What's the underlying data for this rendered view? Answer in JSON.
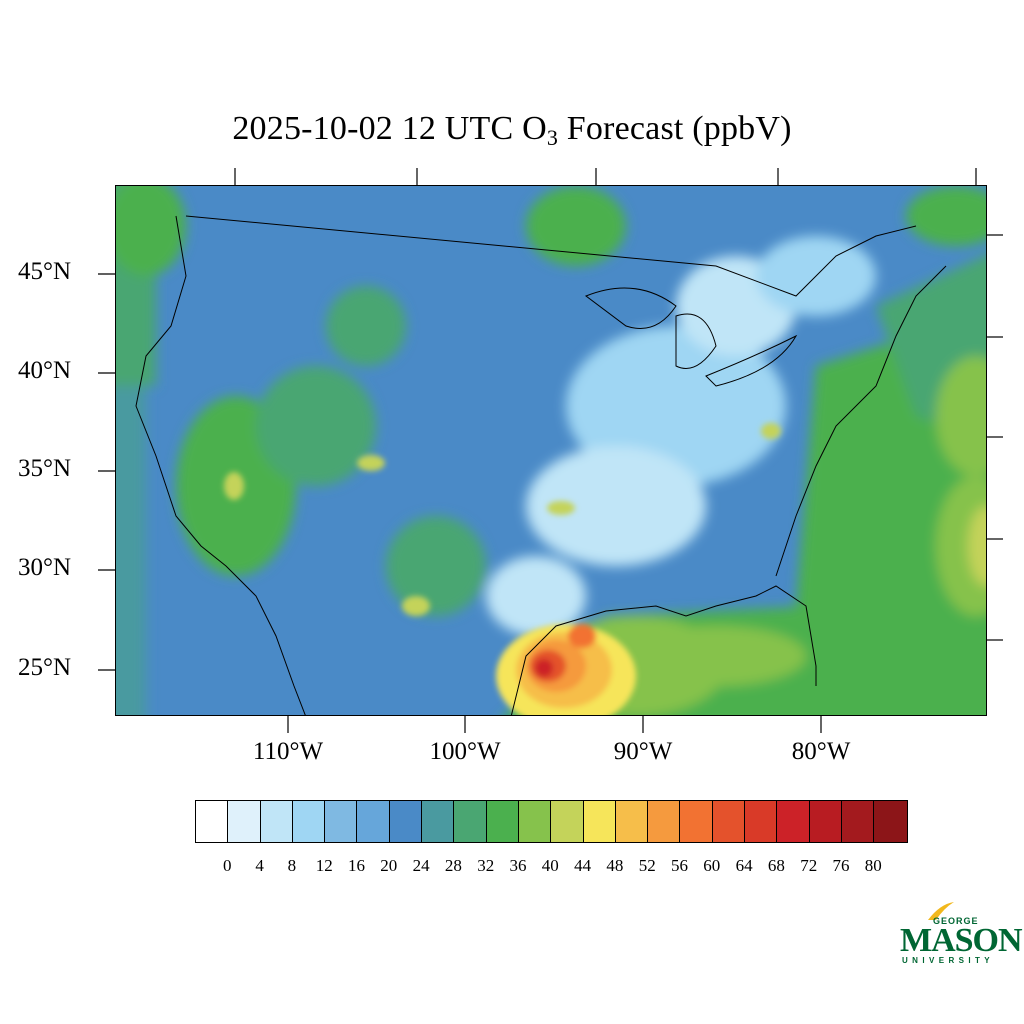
{
  "title": {
    "prefix": "2025-10-02 12 UTC O",
    "subscript": "3",
    "suffix": " Forecast (ppbV)"
  },
  "map": {
    "lat_labels": [
      "45°N",
      "40°N",
      "35°N",
      "30°N",
      "25°N"
    ],
    "lon_labels": [
      "110°W",
      "100°W",
      "90°W",
      "80°W"
    ]
  },
  "colorbar": {
    "tick_labels": [
      "0",
      "4",
      "8",
      "12",
      "16",
      "20",
      "24",
      "28",
      "32",
      "36",
      "40",
      "44",
      "48",
      "52",
      "56",
      "60",
      "64",
      "68",
      "72",
      "76",
      "80"
    ],
    "colors": [
      "#ffffff",
      "#dff1fb",
      "#c0e5f7",
      "#9fd6f3",
      "#7fb9e2",
      "#66a6da",
      "#4a8ac7",
      "#4a9aa0",
      "#4aa672",
      "#4bb04e",
      "#86c24c",
      "#c4d35a",
      "#f6e55a",
      "#f6be4a",
      "#f59a3e",
      "#f27232",
      "#e4522c",
      "#d93a28",
      "#cc2228",
      "#b81c22",
      "#a31a1e",
      "#8c1518"
    ]
  },
  "logo": {
    "line1": "GEORGE",
    "line2": "MASON",
    "line3": "UNIVERSITY",
    "color": "#006633"
  }
}
